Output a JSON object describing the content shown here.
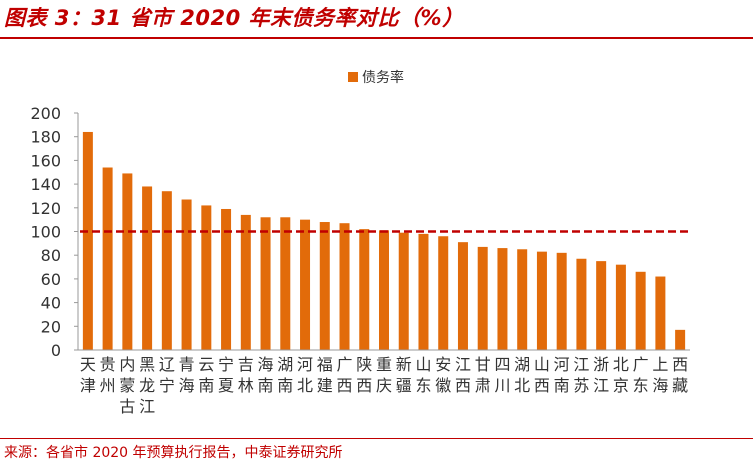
{
  "title": "图表 3：31 省市 2020 年末债务率对比（%）",
  "source": "来源：各省市 2020 年预算执行报告，中泰证券研究所",
  "chart_data": {
    "type": "bar",
    "legend": [
      "债务率"
    ],
    "legend_position": "top",
    "categories": [
      "天津",
      "贵州",
      "内蒙古",
      "黑龙江",
      "辽宁",
      "青海",
      "云南",
      "宁夏",
      "吉林",
      "海南",
      "湖南",
      "河北",
      "福建",
      "广西",
      "陕西",
      "重庆",
      "新疆",
      "山东",
      "安徽",
      "江西",
      "甘肃",
      "四川",
      "湖北",
      "山西",
      "河南",
      "江苏",
      "浙江",
      "北京",
      "广东",
      "上海",
      "西藏"
    ],
    "category_lines": [
      [
        "天",
        "津"
      ],
      [
        "贵",
        "州"
      ],
      [
        "内",
        "蒙",
        "古"
      ],
      [
        "黑",
        "龙",
        "江"
      ],
      [
        "辽",
        "宁"
      ],
      [
        "青",
        "海"
      ],
      [
        "云",
        "南"
      ],
      [
        "宁",
        "夏"
      ],
      [
        "吉",
        "林"
      ],
      [
        "海",
        "南"
      ],
      [
        "湖",
        "南"
      ],
      [
        "河",
        "北"
      ],
      [
        "福",
        "建"
      ],
      [
        "广",
        "西"
      ],
      [
        "陕",
        "西"
      ],
      [
        "重",
        "庆"
      ],
      [
        "新",
        "疆"
      ],
      [
        "山",
        "东"
      ],
      [
        "安",
        "徽"
      ],
      [
        "江",
        "西"
      ],
      [
        "甘",
        "肃"
      ],
      [
        "四",
        "川"
      ],
      [
        "湖",
        "北"
      ],
      [
        "山",
        "西"
      ],
      [
        "河",
        "南"
      ],
      [
        "江",
        "苏"
      ],
      [
        "浙",
        "江"
      ],
      [
        "北",
        "京"
      ],
      [
        "广",
        "东"
      ],
      [
        "上",
        "海"
      ],
      [
        "西",
        "藏"
      ]
    ],
    "series": [
      {
        "name": "债务率",
        "values": [
          184,
          154,
          149,
          138,
          134,
          127,
          122,
          119,
          114,
          112,
          112,
          110,
          108,
          107,
          102,
          101,
          99,
          98,
          96,
          91,
          87,
          86,
          85,
          83,
          82,
          77,
          75,
          72,
          66,
          62,
          17
        ]
      }
    ],
    "reference_line": 100,
    "ylim": [
      0,
      200
    ],
    "yticks": [
      0,
      20,
      40,
      60,
      80,
      100,
      120,
      140,
      160,
      180,
      200
    ],
    "colors": {
      "bar": "#e26b0a",
      "reference": "#c00000",
      "accent": "#c00000"
    }
  }
}
